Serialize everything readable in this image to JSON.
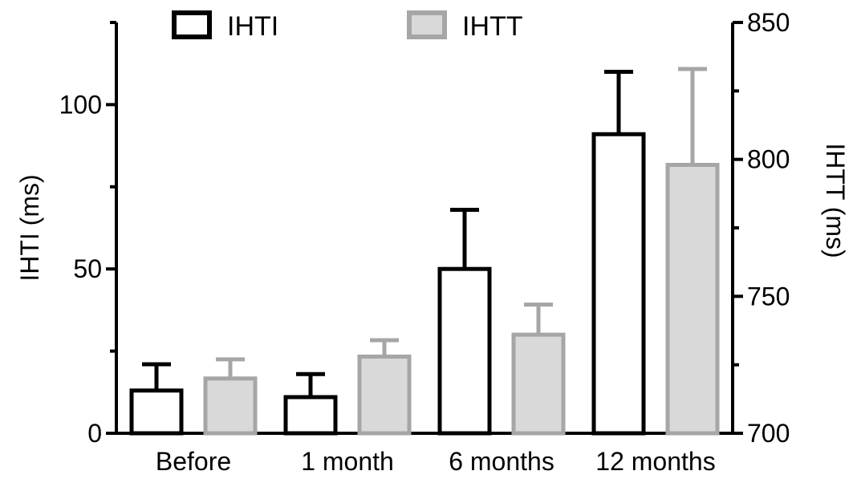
{
  "chart_data": {
    "type": "bar",
    "categories": [
      "Before",
      "1 month",
      "6 months",
      "12 months"
    ],
    "series": [
      {
        "name": "IHTI",
        "axis": "left",
        "values": [
          13,
          11,
          50,
          91
        ],
        "error_upper": [
          21,
          18,
          68,
          110
        ],
        "color": "#000000",
        "fill": "#ffffff"
      },
      {
        "name": "IHTT",
        "axis": "right",
        "values": [
          720,
          728,
          736,
          798
        ],
        "error_upper": [
          727,
          734,
          747,
          833
        ],
        "color": "#a6a6a6",
        "fill": "#d9d9d9"
      }
    ],
    "left_axis": {
      "label": "IHTI (ms)",
      "ylim": [
        0,
        125
      ],
      "ticks": [
        0,
        50,
        100
      ],
      "tick_labels": [
        "0",
        "50",
        "100"
      ],
      "minor_ticks": [
        25,
        75,
        125
      ]
    },
    "right_axis": {
      "label": "IHTT (ms)",
      "ylim": [
        700,
        850
      ],
      "ticks": [
        700,
        750,
        800,
        850
      ],
      "tick_labels": [
        "700",
        "750",
        "800",
        "850"
      ],
      "minor_ticks": [
        725,
        775,
        825
      ]
    },
    "legend": {
      "placement": "top",
      "entries": [
        "IHTI",
        "IHTT"
      ]
    },
    "grid": false
  }
}
